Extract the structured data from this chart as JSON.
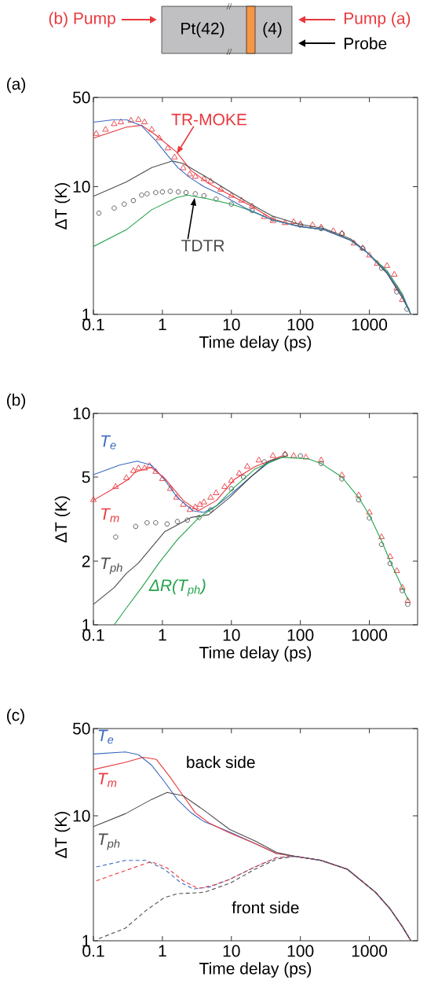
{
  "chart_data": [
    {
      "type": "other",
      "annotations": [
        "(b) Pump",
        "Pt(42)",
        "(4)",
        "Pump (a)",
        "Probe"
      ]
    },
    {
      "type": "line",
      "title": "(a)",
      "xlabel": "Time delay (ps)",
      "ylabel": "ΔT (K)",
      "log": "xy",
      "xlim": [
        0.1,
        5000
      ],
      "ylim": [
        1,
        50
      ],
      "xticks": [
        0.1,
        1,
        10,
        100,
        1000
      ],
      "yticks": [
        1,
        10,
        50
      ],
      "series": [
        {
          "name": "TR-MOKE",
          "type": "scatter",
          "marker": "triangle",
          "color": "#e8383d",
          "x": [
            0.11,
            0.15,
            0.2,
            0.25,
            0.35,
            0.45,
            0.55,
            0.7,
            0.9,
            1.2,
            1.5,
            2,
            2.5,
            3,
            4,
            5,
            7,
            10,
            14,
            20,
            30,
            40,
            60,
            80,
            100,
            150,
            200,
            300,
            400,
            600,
            800,
            1000,
            1300,
            1800,
            2300,
            2500,
            3000
          ],
          "values": [
            26,
            28,
            31,
            32,
            33,
            33.5,
            32,
            28,
            24,
            20,
            17,
            14,
            12.5,
            12,
            11.5,
            11,
            9.5,
            8.5,
            7.8,
            7,
            5.8,
            5.4,
            5.2,
            5.3,
            5.1,
            5,
            4.8,
            4.5,
            4.3,
            3.6,
            3.3,
            2.9,
            2.5,
            2.4,
            2.05,
            1.6,
            1.3
          ]
        },
        {
          "name": "TDTR",
          "type": "scatter",
          "marker": "circle",
          "color": "#4d4d4d",
          "x": [
            0.12,
            0.2,
            0.28,
            0.38,
            0.5,
            0.6,
            0.8,
            1,
            1.3,
            1.7,
            2.2,
            3,
            4,
            6,
            10,
            20,
            40,
            100,
            200,
            400,
            800,
            1500,
            2500,
            3500
          ],
          "values": [
            6.2,
            6.8,
            7.3,
            7.8,
            8.6,
            8.8,
            9,
            9.1,
            9.2,
            9.1,
            9,
            8.8,
            8.5,
            8,
            7.3,
            6.5,
            5.6,
            5,
            4.7,
            4.3,
            3.3,
            2.3,
            1.5,
            1.1
          ]
        },
        {
          "type": "line",
          "color": "#e8383d",
          "x": [
            0.1,
            0.3,
            0.5,
            0.8,
            1.6,
            2.6,
            4.7,
            10,
            20,
            39,
            94,
            220,
            535,
            900,
            1800,
            3000,
            4000
          ],
          "values": [
            24,
            29.3,
            30.3,
            25.4,
            18.7,
            13.4,
            10.6,
            8.5,
            7,
            5.6,
            4.9,
            4.6,
            3.8,
            3.1,
            2.1,
            1.4,
            1.0
          ]
        },
        {
          "type": "line",
          "color": "#4d4d4d",
          "x": [
            0.1,
            0.3,
            0.7,
            1.4,
            2,
            4,
            9.4,
            20,
            39,
            94,
            220,
            535,
            900,
            1800,
            3000,
            4000
          ],
          "values": [
            8.4,
            10.9,
            14.1,
            15.9,
            15.2,
            12.2,
            9.2,
            7.2,
            5.9,
            5.1,
            4.7,
            3.9,
            3.1,
            2.1,
            1.35,
            1.0
          ]
        },
        {
          "type": "line",
          "color": "#22a24a",
          "x": [
            0.1,
            0.3,
            0.7,
            1.6,
            2.3,
            4.7,
            10,
            16,
            39,
            94,
            220,
            535,
            900,
            1800,
            3000,
            4000
          ],
          "values": [
            3.4,
            4.6,
            6.6,
            8.2,
            8.6,
            8,
            7.3,
            6.7,
            5.5,
            4.9,
            4.6,
            3.8,
            3.1,
            2.2,
            1.45,
            1.0
          ]
        },
        {
          "type": "line",
          "color": "#3a6bbf",
          "x": [
            0.1,
            0.2,
            0.3,
            0.5,
            0.8,
            1.2,
            1.7,
            2.5,
            4,
            7,
            16,
            39,
            94,
            220,
            535,
            900,
            1800,
            3000,
            4000
          ],
          "values": [
            32,
            33.5,
            33.5,
            30,
            23,
            17.5,
            14,
            11.8,
            10,
            8.7,
            6.8,
            5.5,
            4.9,
            4.6,
            3.8,
            3.1,
            2.14,
            1.4,
            1.0
          ]
        }
      ]
    },
    {
      "type": "line",
      "title": "(b)",
      "xlabel": "Time delay (ps)",
      "ylabel": "ΔT (K)",
      "log": "xy",
      "xlim": [
        0.1,
        5000
      ],
      "ylim": [
        1,
        10
      ],
      "xticks": [
        0.1,
        1,
        10,
        100,
        1000
      ],
      "yticks": [
        1,
        2,
        5,
        10
      ],
      "series": [
        {
          "type": "scatter",
          "marker": "triangle",
          "color": "#e8383d",
          "x": [
            0.1,
            0.21,
            0.3,
            0.38,
            0.45,
            0.55,
            0.65,
            0.8,
            1,
            1.3,
            1.6,
            2,
            2.5,
            3,
            3.5,
            4,
            5,
            6,
            8,
            10,
            13,
            17,
            25,
            40,
            60,
            80,
            120,
            200,
            400,
            700,
            1000,
            1500,
            2000,
            2500,
            3000,
            3600
          ],
          "values": [
            3.9,
            4.5,
            4.95,
            5.35,
            5.5,
            5.5,
            5.65,
            5.3,
            4.9,
            4.4,
            4,
            3.7,
            3.5,
            3.6,
            3.7,
            3.8,
            4,
            4.2,
            4.5,
            4.8,
            5.2,
            5.6,
            6,
            6.3,
            6.4,
            6.3,
            6.2,
            6,
            5.1,
            4.1,
            3.4,
            2.6,
            2.1,
            1.8,
            1.5,
            1.3
          ]
        },
        {
          "type": "scatter",
          "marker": "circle",
          "color": "#4d4d4d",
          "x": [
            0.21,
            0.41,
            0.6,
            0.8,
            1.17,
            1.65,
            2.3,
            3.4,
            5,
            10,
            15,
            30,
            60,
            100,
            200,
            400,
            700,
            1000,
            1500,
            2000,
            3000,
            3600
          ],
          "values": [
            2.6,
            2.92,
            3.04,
            3.04,
            3,
            3.08,
            3.13,
            3.22,
            3.5,
            4.4,
            5,
            5.9,
            6.4,
            6.3,
            5.8,
            4.9,
            3.9,
            3.2,
            2.4,
            1.95,
            1.45,
            1.25
          ]
        },
        {
          "name": "T$_{e}$",
          "type": "line",
          "color": "#3a6bbf",
          "x": [
            0.1,
            0.24,
            0.43,
            0.69,
            1.07,
            1.65,
            2.8,
            4,
            6.1,
            9.4,
            19,
            35,
            54
          ],
          "values": [
            5.13,
            5.7,
            5.95,
            5.7,
            4.87,
            4,
            3.46,
            3.4,
            3.66,
            4.1,
            5,
            5.87,
            6.2
          ]
        },
        {
          "name": "T$_{m}$",
          "type": "line",
          "color": "#e8383d",
          "x": [
            0.1,
            0.21,
            0.32,
            0.41,
            0.69,
            1.07,
            2,
            3.3,
            6.1,
            11,
            22,
            54
          ],
          "values": [
            3.88,
            4.47,
            4.87,
            5.3,
            5.55,
            4.95,
            3.88,
            3.46,
            3.88,
            4.87,
            5.6,
            6.3
          ]
        },
        {
          "name": "T$_{ph}$",
          "type": "line",
          "color": "#4d4d4d",
          "x": [
            0.1,
            0.2,
            0.3,
            0.45,
            1.07,
            2.6,
            4.7,
            9.4,
            19,
            35,
            64
          ],
          "values": [
            1.25,
            1.5,
            1.75,
            1.96,
            2.75,
            3.22,
            3.32,
            4,
            5,
            5.95,
            6.3
          ]
        },
        {
          "name": "ΔR(T$_{ph}$)",
          "type": "line",
          "color": "#22a24a",
          "x": [
            0.2,
            0.3,
            0.5,
            0.89,
            1.65,
            3.4,
            6.1,
            11,
            22,
            54,
            130,
            200,
            400,
            700,
            1000,
            1500,
            2000,
            3000,
            3700
          ],
          "values": [
            1,
            1.2,
            1.5,
            1.96,
            2.53,
            3.22,
            3.66,
            4.47,
            5.46,
            6.2,
            6.1,
            5.8,
            5,
            4,
            3.3,
            2.5,
            2,
            1.5,
            1.3
          ]
        }
      ]
    },
    {
      "type": "line",
      "title": "(c)",
      "xlabel": "Time delay (ps)",
      "ylabel": "ΔT (K)",
      "log": "xy",
      "xlim": [
        0.1,
        5000
      ],
      "ylim": [
        1,
        50
      ],
      "xticks": [
        0.1,
        1,
        10,
        100,
        1000
      ],
      "yticks": [
        1,
        10,
        50
      ],
      "annotations": [
        "back side",
        "front side"
      ],
      "series": [
        {
          "name": "T$_{e}$",
          "type": "line",
          "color": "#3a6bbf",
          "x": [
            0.1,
            0.29,
            0.45,
            0.69,
            1.07,
            1.65,
            2.6,
            4,
            9.4,
            22,
            45,
            83,
            200,
            480,
            1230,
            2000,
            3000,
            4000
          ],
          "values": [
            31.3,
            32.5,
            30.9,
            25.6,
            18.8,
            13.5,
            10.6,
            9,
            7.45,
            6,
            5,
            4.75,
            4.4,
            3.74,
            2.44,
            1.8,
            1.3,
            1.0
          ]
        },
        {
          "name": "T$_{m}$",
          "type": "line",
          "color": "#e8383d",
          "x": [
            0.1,
            0.29,
            0.53,
            0.82,
            1.27,
            2,
            3,
            4.7,
            9.4,
            22,
            45,
            83,
            200,
            480,
            1230,
            2000,
            3000,
            4000
          ],
          "values": [
            23.5,
            26.8,
            29.5,
            28.3,
            20.7,
            14.5,
            10.6,
            8.8,
            7.3,
            6,
            5,
            4.75,
            4.4,
            3.74,
            2.44,
            1.8,
            1.3,
            1.0
          ]
        },
        {
          "name": "T$_{ph}$",
          "type": "line",
          "color": "#4d4d4d",
          "x": [
            0.1,
            0.29,
            0.69,
            1.17,
            2,
            4,
            9.4,
            22,
            45,
            83,
            200,
            480,
            1230,
            2000,
            3000,
            4000
          ],
          "values": [
            8.2,
            10.4,
            13.5,
            15.4,
            14.5,
            11.1,
            7.8,
            6.3,
            5.1,
            4.75,
            4.4,
            3.74,
            2.44,
            1.8,
            1.3,
            1.0
          ]
        },
        {
          "type": "line",
          "line_style": "dashed",
          "color": "#3a6bbf",
          "x": [
            0.11,
            0.29,
            0.58,
            1.07,
            1.8,
            2.8,
            4.7,
            9.4,
            22,
            45,
            83,
            200,
            480,
            1230,
            2000,
            3000,
            4000
          ],
          "values": [
            3.9,
            4.4,
            4.4,
            3.74,
            2.95,
            2.6,
            2.68,
            3.1,
            3.9,
            4.63,
            4.75,
            4.4,
            3.74,
            2.44,
            1.8,
            1.3,
            1.0
          ]
        },
        {
          "type": "line",
          "line_style": "dashed",
          "color": "#e8383d",
          "x": [
            0.11,
            0.29,
            0.69,
            1.17,
            2,
            3.3,
            5.6,
            9.4,
            22,
            45,
            83,
            200,
            480,
            1230,
            2000,
            3000,
            4000
          ],
          "values": [
            3.02,
            3.65,
            4.3,
            3.83,
            3.02,
            2.62,
            2.8,
            3.1,
            3.9,
            4.63,
            4.75,
            4.4,
            3.74,
            2.44,
            1.8,
            1.3,
            1.0
          ]
        },
        {
          "type": "line",
          "line_style": "dashed",
          "color": "#4d4d4d",
          "x": [
            0.12,
            0.29,
            0.58,
            1.07,
            1.65,
            4,
            9.4,
            22,
            45,
            83,
            200,
            480,
            1230,
            2000,
            3000,
            4000
          ],
          "values": [
            1.04,
            1.26,
            1.75,
            2.22,
            2.38,
            2.44,
            2.88,
            3.74,
            4.5,
            4.75,
            4.4,
            3.74,
            2.44,
            1.8,
            1.3,
            1.0
          ]
        }
      ]
    }
  ]
}
